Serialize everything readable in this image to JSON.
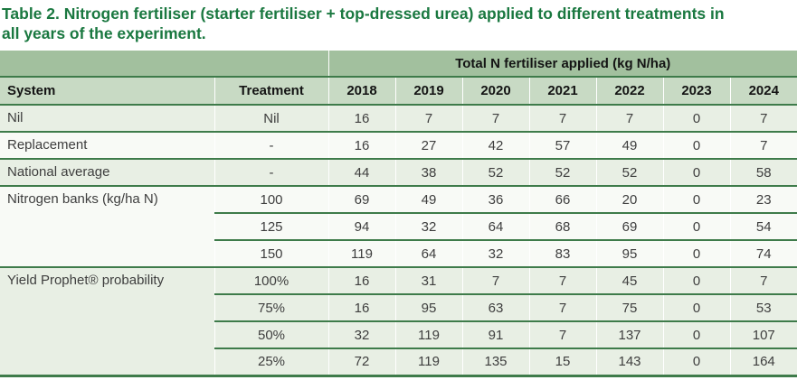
{
  "title": "Table 2. Nitrogen fertiliser (starter fertiliser + top-dressed urea) applied to different treatments in all years of the experiment.",
  "colors": {
    "title_green": "#1a7840",
    "band1": "#a2c09e",
    "band2": "#c8dac4",
    "row_tint": "#e8efe4",
    "row_plain": "#f8faf6",
    "line_green": "#3e7b4a",
    "body_text": "#3e3e3e",
    "header_text": "#141414"
  },
  "table": {
    "span_header": "Total N fertiliser applied (kg N/ha)",
    "columns": [
      "System",
      "Treatment",
      "2018",
      "2019",
      "2020",
      "2021",
      "2022",
      "2023",
      "2024"
    ],
    "groups": [
      {
        "system": "Nil",
        "shade": "tint",
        "rows": [
          {
            "treatment": "Nil",
            "values": [
              "16",
              "7",
              "7",
              "7",
              "7",
              "0",
              "7"
            ]
          }
        ]
      },
      {
        "system": "Replacement",
        "shade": "plain",
        "rows": [
          {
            "treatment": "-",
            "values": [
              "16",
              "27",
              "42",
              "57",
              "49",
              "0",
              "7"
            ]
          }
        ]
      },
      {
        "system": "National average",
        "shade": "tint",
        "rows": [
          {
            "treatment": "-",
            "values": [
              "44",
              "38",
              "52",
              "52",
              "52",
              "0",
              "58"
            ]
          }
        ]
      },
      {
        "system": "Nitrogen banks (kg/ha N)",
        "shade": "plain",
        "rows": [
          {
            "treatment": "100",
            "values": [
              "69",
              "49",
              "36",
              "66",
              "20",
              "0",
              "23"
            ]
          },
          {
            "treatment": "125",
            "values": [
              "94",
              "32",
              "64",
              "68",
              "69",
              "0",
              "54"
            ]
          },
          {
            "treatment": "150",
            "values": [
              "119",
              "64",
              "32",
              "83",
              "95",
              "0",
              "74"
            ]
          }
        ]
      },
      {
        "system": "Yield Prophet® probability",
        "shade": "tint",
        "rows": [
          {
            "treatment": "100%",
            "values": [
              "16",
              "31",
              "7",
              "7",
              "45",
              "0",
              "7"
            ]
          },
          {
            "treatment": "75%",
            "values": [
              "16",
              "95",
              "63",
              "7",
              "75",
              "0",
              "53"
            ]
          },
          {
            "treatment": "50%",
            "values": [
              "32",
              "119",
              "91",
              "7",
              "137",
              "0",
              "107"
            ]
          },
          {
            "treatment": "25%",
            "values": [
              "72",
              "119",
              "135",
              "15",
              "143",
              "0",
              "164"
            ]
          }
        ]
      }
    ]
  }
}
